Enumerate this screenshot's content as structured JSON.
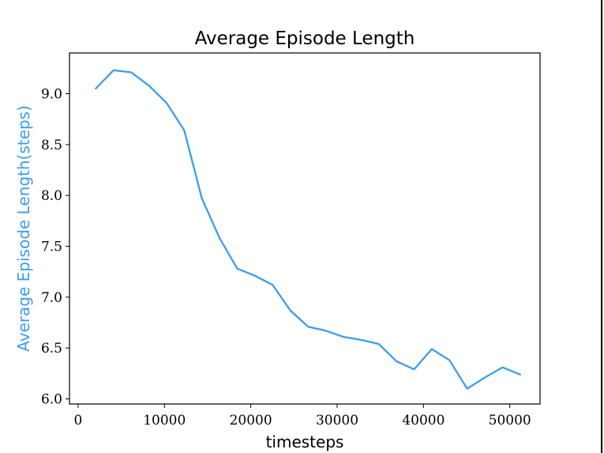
{
  "chart_data": {
    "type": "line",
    "title": "Average Episode Length",
    "xlabel": "timesteps",
    "ylabel": "Average Episode Length(steps)",
    "xlim": [
      -1000,
      53500
    ],
    "ylim": [
      5.95,
      9.4
    ],
    "xticks": [
      0,
      10000,
      20000,
      30000,
      40000,
      50000
    ],
    "xtick_labels": [
      "0",
      "10000",
      "20000",
      "30000",
      "40000",
      "50000"
    ],
    "yticks": [
      6.0,
      6.5,
      7.0,
      7.5,
      8.0,
      8.5,
      9.0
    ],
    "ytick_labels": [
      "6.0",
      "6.5",
      "7.0",
      "7.5",
      "8.0",
      "8.5",
      "9.0"
    ],
    "grid": false,
    "series": [
      {
        "name": "Average Episode Length",
        "color": "#3b9cf0",
        "x": [
          2048,
          4096,
          6144,
          8192,
          10240,
          12288,
          14336,
          16384,
          18432,
          20480,
          22528,
          24576,
          26624,
          28672,
          30720,
          32768,
          34816,
          36864,
          38912,
          40960,
          43008,
          45056,
          47104,
          49152,
          51200
        ],
        "y": [
          9.05,
          9.23,
          9.21,
          9.08,
          8.91,
          8.64,
          7.97,
          7.58,
          7.28,
          7.21,
          7.12,
          6.87,
          6.71,
          6.67,
          6.61,
          6.58,
          6.54,
          6.37,
          6.29,
          6.49,
          6.38,
          6.1,
          6.21,
          6.31,
          6.24
        ]
      }
    ]
  },
  "colors": {
    "ylabel": "#3b9cf0"
  }
}
